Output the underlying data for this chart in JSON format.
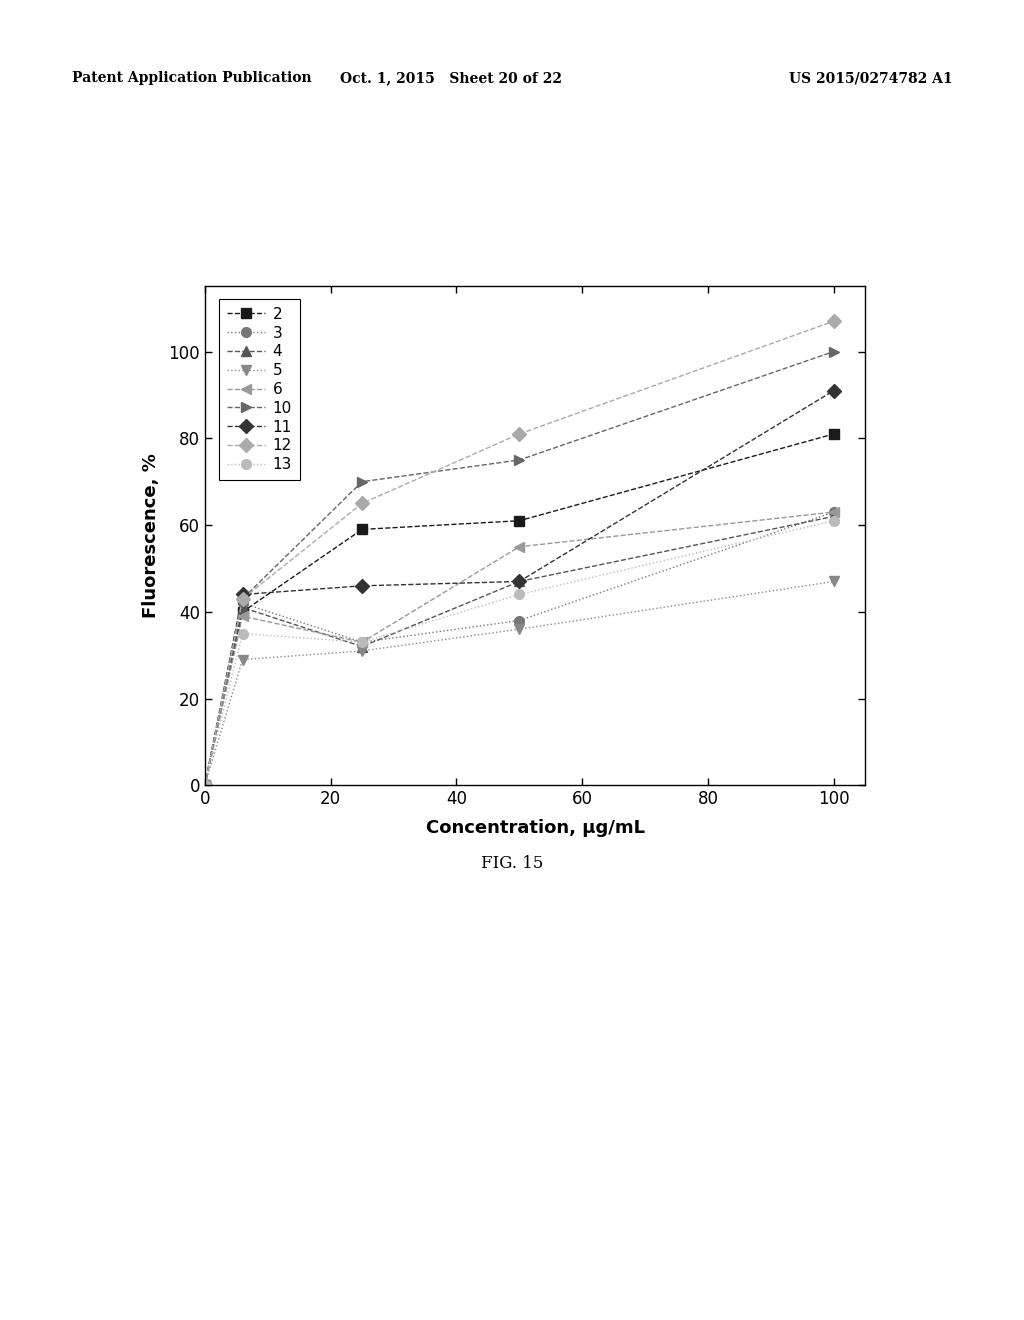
{
  "title": "",
  "xlabel": "Concentration, μg/mL",
  "ylabel": "Fluorescence, %",
  "xlim": [
    0,
    105
  ],
  "ylim": [
    0,
    115
  ],
  "xticks": [
    0,
    20,
    40,
    60,
    80,
    100
  ],
  "yticks": [
    0,
    20,
    40,
    60,
    80,
    100
  ],
  "fig_caption": "FIG. 15",
  "header_left": "Patent Application Publication",
  "header_center": "Oct. 1, 2015   Sheet 20 of 22",
  "header_right": "US 2015/0274782 A1",
  "series": [
    {
      "label": "2",
      "marker": "s",
      "linestyle": "--",
      "x": [
        0,
        6,
        25,
        50,
        100
      ],
      "y": [
        0,
        40,
        59,
        61,
        81
      ]
    },
    {
      "label": "3",
      "marker": "o",
      "linestyle": ":",
      "x": [
        0,
        6,
        25,
        50,
        100
      ],
      "y": [
        0,
        42,
        33,
        38,
        63
      ]
    },
    {
      "label": "4",
      "marker": "^",
      "linestyle": "--",
      "x": [
        0,
        6,
        25,
        50,
        100
      ],
      "y": [
        0,
        41,
        32,
        47,
        62
      ]
    },
    {
      "label": "5",
      "marker": "v",
      "linestyle": ":",
      "x": [
        0,
        6,
        25,
        50,
        100
      ],
      "y": [
        0,
        29,
        31,
        36,
        47
      ]
    },
    {
      "label": "6",
      "marker": "<",
      "linestyle": "--",
      "x": [
        0,
        6,
        25,
        50,
        100
      ],
      "y": [
        0,
        39,
        33,
        55,
        63
      ]
    },
    {
      "label": "10",
      "marker": ">",
      "linestyle": "--",
      "x": [
        0,
        6,
        25,
        50,
        100
      ],
      "y": [
        0,
        43,
        70,
        75,
        100
      ]
    },
    {
      "label": "11",
      "marker": "D",
      "linestyle": "--",
      "x": [
        0,
        6,
        25,
        50,
        100
      ],
      "y": [
        0,
        44,
        46,
        47,
        91
      ]
    },
    {
      "label": "12",
      "marker": "D",
      "linestyle": "--",
      "x": [
        0,
        6,
        25,
        50,
        100
      ],
      "y": [
        0,
        43,
        65,
        81,
        107
      ]
    },
    {
      "label": "13",
      "marker": "o",
      "linestyle": ":",
      "x": [
        0,
        6,
        25,
        50,
        100
      ],
      "y": [
        0,
        35,
        33,
        44,
        61
      ]
    }
  ],
  "line_colors": [
    "#1a1a1a",
    "#777777",
    "#555555",
    "#888888",
    "#999999",
    "#666666",
    "#333333",
    "#aaaaaa",
    "#bbbbbb"
  ],
  "background_color": "#ffffff"
}
